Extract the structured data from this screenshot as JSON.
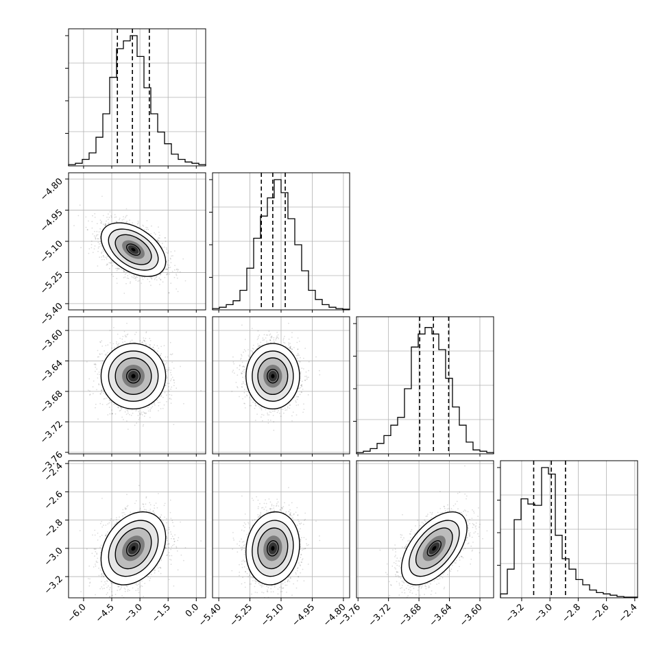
{
  "chart_data": {
    "type": "corner",
    "grid": true,
    "params": [
      {
        "range": [
          -6.8,
          0.5
        ],
        "ticks": [
          "−6.0",
          "−4.5",
          "−3.0",
          "−1.5",
          "0.0"
        ],
        "tick_values": [
          -6.0,
          -4.5,
          -3.0,
          -1.5,
          0.0
        ],
        "quantiles": [
          -4.2,
          -3.4,
          -2.5
        ],
        "hist": [
          0.01,
          0.02,
          0.05,
          0.1,
          0.22,
          0.4,
          0.68,
          0.9,
          0.96,
          1.0,
          0.84,
          0.6,
          0.4,
          0.26,
          0.17,
          0.09,
          0.05,
          0.03,
          0.02,
          0.01
        ],
        "mean": -3.35,
        "sd": 0.8
      },
      {
        "range": [
          -5.43,
          -4.77
        ],
        "ticks": [
          "−5.40",
          "−5.25",
          "−5.10",
          "−4.95",
          "−4.80"
        ],
        "tick_values": [
          -5.4,
          -5.25,
          -5.1,
          -4.95,
          -4.8
        ],
        "quantiles": [
          -5.195,
          -5.14,
          -5.08
        ],
        "hist": [
          0.01,
          0.02,
          0.04,
          0.07,
          0.15,
          0.32,
          0.55,
          0.72,
          0.86,
          1.0,
          0.9,
          0.7,
          0.5,
          0.3,
          0.15,
          0.08,
          0.04,
          0.02,
          0.01,
          0.005
        ],
        "mean": -5.14,
        "sd": 0.06
      },
      {
        "range": [
          -3.762,
          -3.582
        ],
        "ticks": [
          "−3.76",
          "−3.72",
          "−3.68",
          "−3.64",
          "−3.60"
        ],
        "tick_values": [
          -3.76,
          -3.72,
          -3.68,
          -3.64,
          -3.6
        ],
        "quantiles": [
          -3.679,
          -3.661,
          -3.641
        ],
        "hist": [
          0.01,
          0.02,
          0.04,
          0.08,
          0.14,
          0.22,
          0.28,
          0.5,
          0.82,
          0.92,
          0.97,
          0.92,
          0.8,
          0.58,
          0.36,
          0.22,
          0.09,
          0.03,
          0.02,
          0.01
        ],
        "mean": -3.66,
        "sd": 0.02
      },
      {
        "range": [
          -3.35,
          -2.38
        ],
        "ticks": [
          "−3.2",
          "−3.0",
          "−2.8",
          "−2.6",
          "−2.4"
        ],
        "tick_values": [
          -3.2,
          -3.0,
          -2.8,
          -2.6,
          -2.4
        ],
        "yticks": [
          "−2.4",
          "−2.6",
          "−2.8",
          "−3.0",
          "−3.2"
        ],
        "ytick_values": [
          -2.4,
          -2.6,
          -2.8,
          -3.0,
          -3.2
        ],
        "quantiles": [
          -3.115,
          -2.99,
          -2.89
        ],
        "hist": [
          0.03,
          0.22,
          0.6,
          0.76,
          0.72,
          0.71,
          1.0,
          0.95,
          0.48,
          0.3,
          0.22,
          0.14,
          0.1,
          0.06,
          0.04,
          0.03,
          0.02,
          0.01,
          0.005,
          0.005
        ],
        "mean": -3.0,
        "sd": 0.12
      }
    ],
    "correlations": [
      [
        1,
        -0.45,
        0.0,
        0.3
      ],
      [
        -0.45,
        1,
        0.0,
        0.1
      ],
      [
        0.0,
        0.0,
        1,
        0.55
      ],
      [
        0.3,
        0.1,
        0.55,
        1
      ]
    ]
  }
}
